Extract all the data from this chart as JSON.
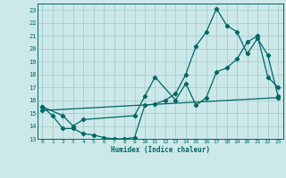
{
  "title": "",
  "xlabel": "Humidex (Indice chaleur)",
  "background_color": "#cce8e8",
  "grid_color": "#aacccc",
  "line_color": "#006666",
  "xlim": [
    -0.5,
    23.5
  ],
  "ylim": [
    13,
    23.5
  ],
  "yticks": [
    13,
    14,
    15,
    16,
    17,
    18,
    19,
    20,
    21,
    22,
    23
  ],
  "xticks": [
    0,
    1,
    2,
    3,
    4,
    5,
    6,
    7,
    8,
    9,
    10,
    11,
    12,
    13,
    14,
    15,
    16,
    17,
    18,
    19,
    20,
    21,
    22,
    23
  ],
  "line1_x": [
    0,
    1,
    2,
    3,
    4,
    5,
    6,
    7,
    8,
    9,
    10,
    11,
    12,
    13,
    14,
    15,
    16,
    17,
    18,
    19,
    20,
    21,
    22,
    23
  ],
  "line1_y": [
    15.5,
    14.8,
    13.8,
    13.8,
    13.4,
    13.3,
    13.1,
    13.0,
    13.0,
    13.1,
    15.6,
    15.7,
    16.0,
    16.5,
    18.0,
    20.2,
    21.3,
    23.1,
    21.8,
    21.3,
    19.6,
    20.8,
    19.5,
    16.3
  ],
  "line2_x": [
    0,
    2,
    3,
    4,
    9,
    10,
    11,
    13,
    14,
    15,
    16,
    17,
    18,
    19,
    20,
    21,
    22,
    23
  ],
  "line2_y": [
    15.5,
    14.8,
    14.0,
    14.5,
    14.8,
    16.3,
    17.8,
    16.0,
    17.3,
    15.6,
    16.2,
    18.2,
    18.5,
    19.2,
    20.5,
    21.0,
    17.8,
    17.0
  ],
  "line3_x": [
    0,
    23
  ],
  "line3_y": [
    15.2,
    16.2
  ]
}
